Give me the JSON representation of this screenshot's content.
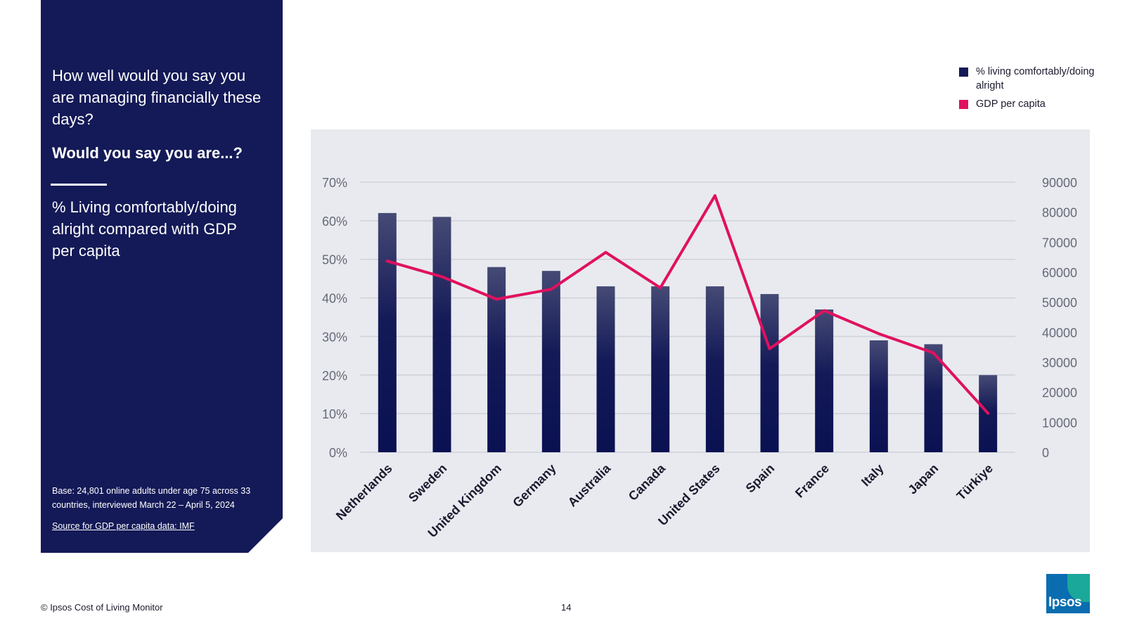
{
  "panel": {
    "question": "How well would you say you are managing financially these days?",
    "sub_question": "Would you say you are...?",
    "measure": "% Living comfortably/doing alright compared with GDP per capita",
    "base_note": "Base: 24,801 online adults under age 75 across 33 countries, interviewed March 22 – April 5, 2024",
    "source_link": "Source for GDP per capita data: IMF"
  },
  "footer": {
    "copyright": "© Ipsos Cost of Living Monitor",
    "page_number": "14",
    "logo_text": "Ipsos"
  },
  "colors": {
    "panel_bg": "#141a57",
    "bar": "#141a57",
    "line": "#e0115f",
    "chart_bg": "#e8eaef"
  },
  "chart_data": {
    "type": "bar",
    "title": "",
    "xlabel": "",
    "ylabel": "",
    "categories": [
      "Netherlands",
      "Sweden",
      "United Kingdom",
      "Germany",
      "Australia",
      "Canada",
      "United States",
      "Spain",
      "France",
      "Italy",
      "Japan",
      "Türkiye"
    ],
    "series": [
      {
        "name": "% living comfortably/doing alright",
        "type": "bar",
        "axis": "left",
        "values": [
          62,
          61,
          48,
          47,
          43,
          43,
          43,
          41,
          37,
          29,
          28,
          20
        ]
      },
      {
        "name": "GDP per capita",
        "type": "line",
        "axis": "right",
        "values": [
          63700,
          58500,
          51000,
          54300,
          66600,
          54800,
          85500,
          34500,
          47200,
          39500,
          33100,
          13000
        ]
      }
    ],
    "y_left": {
      "min": 0,
      "max": 70,
      "ticks": [
        "0%",
        "10%",
        "20%",
        "30%",
        "40%",
        "50%",
        "60%",
        "70%"
      ]
    },
    "y_right": {
      "min": 0,
      "max": 90000,
      "ticks": [
        "0",
        "10000",
        "20000",
        "30000",
        "40000",
        "50000",
        "60000",
        "70000",
        "80000",
        "90000"
      ]
    },
    "grid": true,
    "legend_position": "top-right"
  }
}
